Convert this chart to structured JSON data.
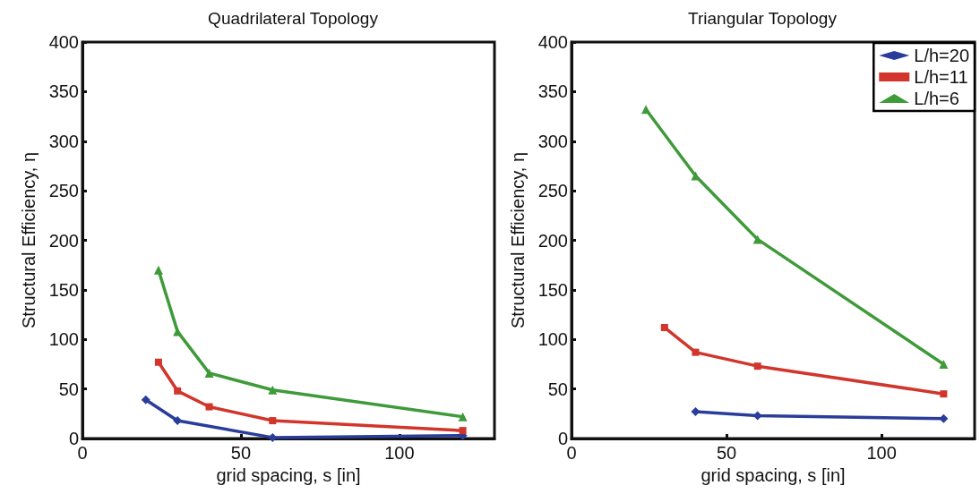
{
  "chart_data": [
    {
      "type": "line",
      "title": "Quadrilateral Topology",
      "xlabel": "grid spacing, s [in]",
      "ylabel": "Structural Efficiency, η",
      "xlim": [
        0,
        130
      ],
      "xticks": [
        0,
        50,
        100
      ],
      "ylim": [
        0,
        400
      ],
      "yticks": [
        0,
        50,
        100,
        150,
        200,
        250,
        300,
        350,
        400
      ],
      "grid": false,
      "legend": false,
      "series": [
        {
          "color": "#2a3d9a",
          "marker": "diamond",
          "x": [
            20,
            30,
            60,
            120
          ],
          "values": [
            39,
            18,
            1,
            3
          ]
        },
        {
          "color": "#d1352b",
          "marker": "square",
          "x": [
            24,
            30,
            40,
            60,
            120
          ],
          "values": [
            77,
            48,
            32,
            18,
            8
          ]
        },
        {
          "color": "#3f9a3a",
          "marker": "triangle",
          "x": [
            24,
            30,
            40,
            60,
            120
          ],
          "values": [
            170,
            108,
            66,
            49,
            22
          ]
        }
      ]
    },
    {
      "type": "line",
      "title": "Triangular Topology",
      "xlabel": "grid spacing, s [in]",
      "ylabel": "Structural Efficiency, η",
      "xlim": [
        0,
        130
      ],
      "xticks": [
        0,
        50,
        100
      ],
      "ylim": [
        0,
        400
      ],
      "yticks": [
        0,
        50,
        100,
        150,
        200,
        250,
        300,
        350,
        400
      ],
      "grid": false,
      "legend": "top right",
      "series": [
        {
          "name": "L/h=20",
          "color": "#2a3d9a",
          "marker": "diamond",
          "x": [
            40,
            60,
            120
          ],
          "values": [
            27,
            23,
            20
          ]
        },
        {
          "name": "L/h=11",
          "color": "#d1352b",
          "marker": "square",
          "x": [
            30,
            40,
            60,
            120
          ],
          "values": [
            112,
            87,
            73,
            45
          ]
        },
        {
          "name": "L/h=6",
          "color": "#3f9a3a",
          "marker": "triangle",
          "x": [
            24,
            40,
            60,
            120
          ],
          "values": [
            332,
            265,
            201,
            75
          ]
        }
      ]
    }
  ]
}
